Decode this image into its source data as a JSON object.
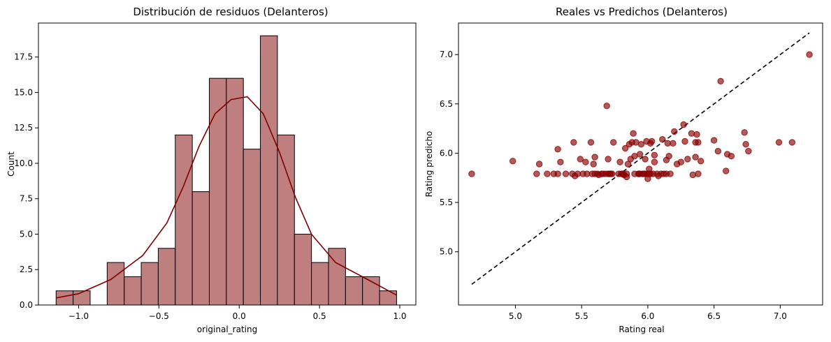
{
  "chart_data": [
    {
      "type": "histogram",
      "title": "Distribución de residuos (Delanteros)",
      "xlabel": "original_rating",
      "ylabel": "Count",
      "xlim": [
        -1.25,
        1.1
      ],
      "ylim": [
        0,
        19.9
      ],
      "xticks": [
        -1.0,
        -0.5,
        0.0,
        0.5,
        1.0
      ],
      "xtick_labels": [
        "−1.0",
        "−0.5",
        "0.0",
        "0.5",
        "1.0"
      ],
      "yticks": [
        0,
        2.5,
        5,
        7.5,
        10,
        12.5,
        15,
        17.5
      ],
      "ytick_labels": [
        "0.0",
        "2.5",
        "5.0",
        "7.5",
        "10.0",
        "12.5",
        "15.0",
        "17.5"
      ],
      "bin_start": -1.14,
      "bin_width": 0.106,
      "counts": [
        1,
        1,
        0,
        3,
        2,
        3,
        4,
        12,
        8,
        16,
        16,
        11,
        19,
        12,
        5,
        3,
        4,
        2,
        2,
        1
      ],
      "kde": {
        "x": [
          -1.14,
          -1.0,
          -0.8,
          -0.6,
          -0.45,
          -0.35,
          -0.25,
          -0.15,
          -0.05,
          0.05,
          0.15,
          0.25,
          0.35,
          0.45,
          0.6,
          0.8,
          0.98
        ],
        "y": [
          0.5,
          0.8,
          1.8,
          3.5,
          5.8,
          8.3,
          11.2,
          13.5,
          14.5,
          14.7,
          13.5,
          10.8,
          7.6,
          5.0,
          3.0,
          1.8,
          0.7
        ]
      },
      "colors": {
        "bar_fill": "#bf7f7f",
        "bar_edge": "#000000",
        "kde_line": "#800000"
      }
    },
    {
      "type": "scatter",
      "title": "Reales vs Predichos (Delanteros)",
      "xlabel": "Rating real",
      "ylabel": "Rating predicho",
      "xlim": [
        4.57,
        7.32
      ],
      "ylim": [
        4.46,
        7.32
      ],
      "xticks": [
        5.0,
        5.5,
        6.0,
        6.5,
        7.0
      ],
      "xtick_labels": [
        "5.0",
        "5.5",
        "6.0",
        "6.5",
        "7.0"
      ],
      "yticks": [
        5.0,
        5.5,
        6.0,
        6.5,
        7.0
      ],
      "ytick_labels": [
        "5.0",
        "5.5",
        "6.0",
        "6.5",
        "7.0"
      ],
      "reference_line": {
        "x": [
          4.67,
          7.22
        ],
        "y": [
          4.67,
          7.22
        ],
        "style": "dashed",
        "color": "#000000"
      },
      "points": [
        [
          4.67,
          5.79
        ],
        [
          4.98,
          5.92
        ],
        [
          5.16,
          5.79
        ],
        [
          5.18,
          5.89
        ],
        [
          5.24,
          5.79
        ],
        [
          5.29,
          5.79
        ],
        [
          5.32,
          5.79
        ],
        [
          5.32,
          6.04
        ],
        [
          5.34,
          5.91
        ],
        [
          5.38,
          5.79
        ],
        [
          5.43,
          5.79
        ],
        [
          5.44,
          6.11
        ],
        [
          5.45,
          5.77
        ],
        [
          5.47,
          5.79
        ],
        [
          5.49,
          5.94
        ],
        [
          5.51,
          5.79
        ],
        [
          5.53,
          5.91
        ],
        [
          5.54,
          5.79
        ],
        [
          5.57,
          6.11
        ],
        [
          5.58,
          5.79
        ],
        [
          5.59,
          5.89
        ],
        [
          5.6,
          5.79
        ],
        [
          5.6,
          5.96
        ],
        [
          5.62,
          5.79
        ],
        [
          5.63,
          5.78
        ],
        [
          5.65,
          5.79
        ],
        [
          5.66,
          5.79
        ],
        [
          5.68,
          5.79
        ],
        [
          5.69,
          6.48
        ],
        [
          5.7,
          5.79
        ],
        [
          5.7,
          5.94
        ],
        [
          5.71,
          5.79
        ],
        [
          5.72,
          5.79
        ],
        [
          5.73,
          5.79
        ],
        [
          5.74,
          6.11
        ],
        [
          5.78,
          5.79
        ],
        [
          5.79,
          5.91
        ],
        [
          5.8,
          5.79
        ],
        [
          5.81,
          5.79
        ],
        [
          5.82,
          5.78
        ],
        [
          5.83,
          6.05
        ],
        [
          5.84,
          5.79
        ],
        [
          5.84,
          5.76
        ],
        [
          5.85,
          5.89
        ],
        [
          5.86,
          6.09
        ],
        [
          5.87,
          5.94
        ],
        [
          5.88,
          6.11
        ],
        [
          5.89,
          6.2
        ],
        [
          5.9,
          5.79
        ],
        [
          5.9,
          5.97
        ],
        [
          5.91,
          6.11
        ],
        [
          5.93,
          5.79
        ],
        [
          5.93,
          5.79
        ],
        [
          5.94,
          5.79
        ],
        [
          5.94,
          5.99
        ],
        [
          5.95,
          6.09
        ],
        [
          5.96,
          5.79
        ],
        [
          5.97,
          5.79
        ],
        [
          5.98,
          5.79
        ],
        [
          5.98,
          5.94
        ],
        [
          5.99,
          6.12
        ],
        [
          6.0,
          5.79
        ],
        [
          6.0,
          5.74
        ],
        [
          6.01,
          5.84
        ],
        [
          6.01,
          5.79
        ],
        [
          6.02,
          6.1
        ],
        [
          6.02,
          5.79
        ],
        [
          6.03,
          6.12
        ],
        [
          6.04,
          5.79
        ],
        [
          6.05,
          5.91
        ],
        [
          6.05,
          5.98
        ],
        [
          6.07,
          5.79
        ],
        [
          6.08,
          5.77
        ],
        [
          6.1,
          5.79
        ],
        [
          6.11,
          6.14
        ],
        [
          6.12,
          5.79
        ],
        [
          6.14,
          5.79
        ],
        [
          6.14,
          5.93
        ],
        [
          6.15,
          6.1
        ],
        [
          6.16,
          5.97
        ],
        [
          6.17,
          5.79
        ],
        [
          6.19,
          6.1
        ],
        [
          6.2,
          6.22
        ],
        [
          6.22,
          5.89
        ],
        [
          6.25,
          5.91
        ],
        [
          6.27,
          6.29
        ],
        [
          6.28,
          6.12
        ],
        [
          6.3,
          5.94
        ],
        [
          6.33,
          6.2
        ],
        [
          6.34,
          5.78
        ],
        [
          6.36,
          6.11
        ],
        [
          6.36,
          5.96
        ],
        [
          6.37,
          6.19
        ],
        [
          6.38,
          6.11
        ],
        [
          6.38,
          5.79
        ],
        [
          6.4,
          5.92
        ],
        [
          6.5,
          6.13
        ],
        [
          6.53,
          6.02
        ],
        [
          6.55,
          6.73
        ],
        [
          6.59,
          5.82
        ],
        [
          6.6,
          5.99
        ],
        [
          6.63,
          5.97
        ],
        [
          6.73,
          6.21
        ],
        [
          6.74,
          6.09
        ],
        [
          6.76,
          6.02
        ],
        [
          6.99,
          6.11
        ],
        [
          7.09,
          6.11
        ],
        [
          7.22,
          7.0
        ]
      ],
      "colors": {
        "point": "#8b0000",
        "point_edge": "#8b0000"
      }
    }
  ]
}
